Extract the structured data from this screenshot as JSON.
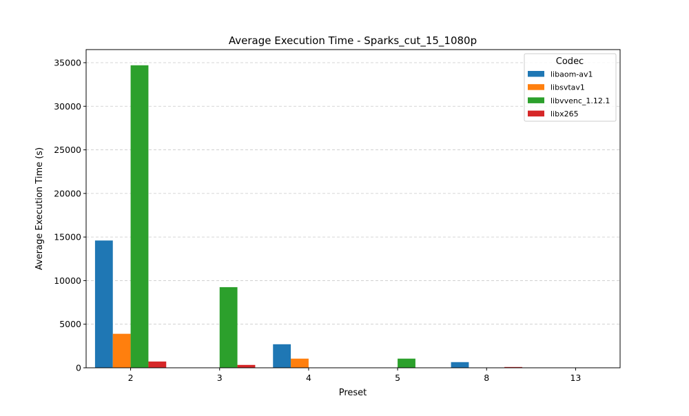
{
  "chart_data": {
    "type": "bar",
    "title": "Average Execution Time - Sparks_cut_15_1080p",
    "xlabel": "Preset",
    "ylabel": "Average Execution Time (s)",
    "categories": [
      "2",
      "3",
      "4",
      "5",
      "8",
      "13"
    ],
    "ylim": [
      0,
      36500
    ],
    "yticks": [
      0,
      5000,
      10000,
      15000,
      20000,
      25000,
      30000,
      35000
    ],
    "ytick_labels": [
      "0",
      "5000",
      "10000",
      "15000",
      "20000",
      "25000",
      "30000",
      "35000"
    ],
    "grid": {
      "y": true,
      "style": "dashed"
    },
    "legend": {
      "title": "Codec",
      "placement": "top-right"
    },
    "series": [
      {
        "name": "libaom-av1",
        "color": "#1f77b4",
        "values": [
          14600,
          0,
          2700,
          0,
          650,
          0
        ]
      },
      {
        "name": "libsvtav1",
        "color": "#ff7f0e",
        "values": [
          3900,
          0,
          1050,
          0,
          0,
          0
        ]
      },
      {
        "name": "libvvenc_1.12.1",
        "color": "#2ca02c",
        "values": [
          34700,
          9250,
          0,
          1050,
          0,
          0
        ]
      },
      {
        "name": "libx265",
        "color": "#d62728",
        "values": [
          720,
          330,
          0,
          0,
          90,
          0
        ]
      }
    ]
  }
}
